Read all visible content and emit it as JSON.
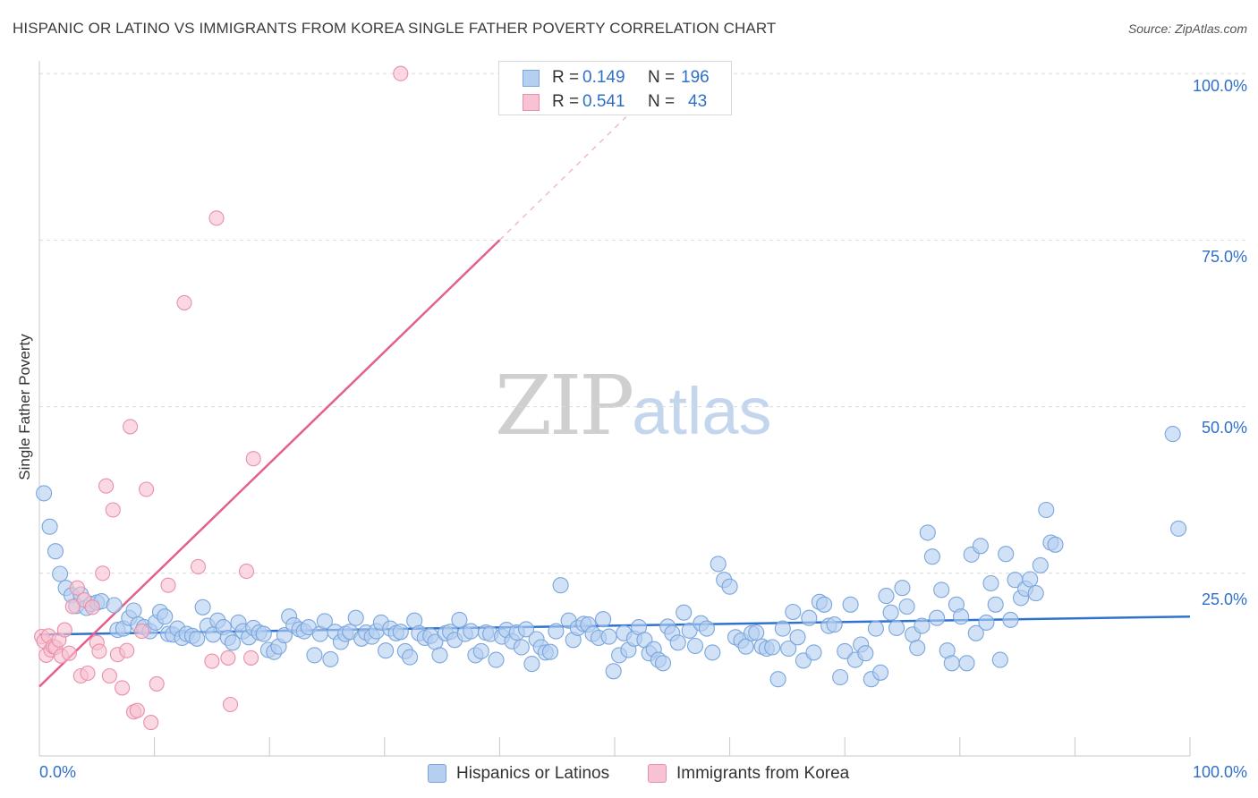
{
  "header": {
    "title": "HISPANIC OR LATINO VS IMMIGRANTS FROM KOREA SINGLE FATHER POVERTY CORRELATION CHART",
    "source": "Source: ZipAtlas.com"
  },
  "watermark": {
    "zip": "ZIP",
    "atlas": "atlas"
  },
  "legend_top": {
    "rows": [
      {
        "r_label": "R =",
        "r_value": "0.149",
        "n_label": "N =",
        "n_value": "196"
      },
      {
        "r_label": "R =",
        "r_value": "0.541",
        "n_label": "N =",
        "n_value": "43"
      }
    ]
  },
  "legend_bottom": {
    "items": [
      "Hispanics or Latinos",
      "Immigrants from Korea"
    ]
  },
  "axes": {
    "ylabel": "Single Father Poverty",
    "y_ticks": [
      "100.0%",
      "75.0%",
      "50.0%",
      "25.0%"
    ],
    "x_ticks": [
      "0.0%",
      "100.0%"
    ]
  },
  "colors": {
    "blue_fill": "#b5cff0",
    "blue_stroke": "#7aa6dd",
    "blue_line": "#2f72d0",
    "pink_fill": "#f7c2d1",
    "pink_stroke": "#ea8fab",
    "pink_line": "#e4608c",
    "tick_text": "#2f6fc9"
  },
  "chart_data": {
    "type": "scatter",
    "title": "HISPANIC OR LATINO VS IMMIGRANTS FROM KOREA SINGLE FATHER POVERTY CORRELATION CHART",
    "xlabel": "",
    "ylabel": "Single Father Poverty",
    "xlim": [
      0,
      100
    ],
    "ylim": [
      0,
      100
    ],
    "grid": true,
    "legend_placement": "bottom",
    "series": [
      {
        "name": "Hispanics or Latinos",
        "R": 0.149,
        "N": 196,
        "trend": {
          "x": [
            0,
            100
          ],
          "y": [
            15.8,
            18.5
          ]
        },
        "points": [
          [
            0.4,
            37.0
          ],
          [
            0.9,
            32.0
          ],
          [
            1.4,
            28.3
          ],
          [
            1.8,
            24.9
          ],
          [
            2.3,
            22.8
          ],
          [
            2.8,
            21.7
          ],
          [
            3.2,
            20.1
          ],
          [
            3.6,
            21.8
          ],
          [
            4.1,
            19.8
          ],
          [
            4.5,
            20.4
          ],
          [
            5.0,
            20.6
          ],
          [
            5.4,
            20.8
          ],
          [
            6.5,
            20.2
          ],
          [
            6.8,
            16.5
          ],
          [
            7.3,
            16.7
          ],
          [
            7.8,
            18.3
          ],
          [
            8.2,
            19.4
          ],
          [
            8.6,
            17.3
          ],
          [
            9.1,
            16.9
          ],
          [
            9.6,
            16.3
          ],
          [
            10.1,
            17.6
          ],
          [
            10.5,
            19.2
          ],
          [
            10.9,
            18.5
          ],
          [
            11.2,
            15.9
          ],
          [
            11.6,
            15.8
          ],
          [
            12.0,
            16.7
          ],
          [
            12.4,
            15.3
          ],
          [
            12.8,
            15.9
          ],
          [
            13.3,
            15.6
          ],
          [
            13.7,
            15.2
          ],
          [
            14.2,
            19.9
          ],
          [
            14.6,
            17.1
          ],
          [
            15.1,
            15.8
          ],
          [
            15.5,
            17.9
          ],
          [
            16.0,
            16.9
          ],
          [
            16.4,
            15.3
          ],
          [
            16.8,
            14.6
          ],
          [
            17.3,
            17.6
          ],
          [
            17.7,
            16.3
          ],
          [
            18.2,
            15.4
          ],
          [
            18.6,
            16.8
          ],
          [
            19.1,
            16.1
          ],
          [
            19.5,
            15.9
          ],
          [
            19.9,
            13.5
          ],
          [
            20.4,
            13.2
          ],
          [
            20.8,
            14.0
          ],
          [
            21.3,
            15.7
          ],
          [
            21.7,
            18.5
          ],
          [
            22.1,
            17.2
          ],
          [
            22.6,
            16.6
          ],
          [
            23.0,
            16.3
          ],
          [
            23.4,
            16.9
          ],
          [
            23.9,
            12.7
          ],
          [
            24.4,
            15.9
          ],
          [
            24.8,
            17.8
          ],
          [
            25.3,
            12.1
          ],
          [
            25.7,
            16.2
          ],
          [
            26.2,
            14.7
          ],
          [
            26.6,
            15.9
          ],
          [
            27.0,
            16.2
          ],
          [
            27.5,
            18.3
          ],
          [
            28.0,
            15.2
          ],
          [
            28.4,
            16.1
          ],
          [
            28.9,
            15.5
          ],
          [
            29.3,
            16.3
          ],
          [
            29.7,
            17.6
          ],
          [
            30.1,
            13.4
          ],
          [
            30.5,
            16.7
          ],
          [
            31.0,
            16.0
          ],
          [
            31.4,
            16.2
          ],
          [
            31.8,
            13.3
          ],
          [
            32.2,
            12.4
          ],
          [
            32.6,
            17.9
          ],
          [
            33.0,
            16.0
          ],
          [
            33.5,
            15.3
          ],
          [
            34.0,
            15.6
          ],
          [
            34.4,
            14.7
          ],
          [
            34.8,
            12.7
          ],
          [
            35.3,
            16.0
          ],
          [
            35.7,
            16.2
          ],
          [
            36.1,
            15.0
          ],
          [
            36.5,
            18.0
          ],
          [
            37.0,
            15.9
          ],
          [
            37.5,
            16.3
          ],
          [
            37.9,
            12.7
          ],
          [
            38.4,
            13.3
          ],
          [
            38.8,
            16.1
          ],
          [
            39.2,
            15.9
          ],
          [
            39.7,
            12.0
          ],
          [
            40.2,
            15.5
          ],
          [
            40.6,
            16.5
          ],
          [
            41.1,
            14.8
          ],
          [
            41.5,
            16.1
          ],
          [
            41.9,
            13.9
          ],
          [
            42.3,
            16.6
          ],
          [
            42.8,
            11.4
          ],
          [
            43.2,
            15.1
          ],
          [
            43.6,
            13.9
          ],
          [
            44.0,
            13.1
          ],
          [
            44.4,
            13.2
          ],
          [
            44.9,
            16.3
          ],
          [
            45.3,
            23.2
          ],
          [
            46.0,
            17.9
          ],
          [
            46.4,
            15.0
          ],
          [
            46.8,
            16.8
          ],
          [
            47.3,
            17.4
          ],
          [
            47.7,
            17.3
          ],
          [
            48.1,
            15.9
          ],
          [
            48.6,
            15.3
          ],
          [
            49.0,
            18.1
          ],
          [
            49.5,
            15.5
          ],
          [
            49.9,
            10.3
          ],
          [
            50.4,
            12.7
          ],
          [
            50.8,
            16.0
          ],
          [
            51.2,
            13.5
          ],
          [
            51.7,
            15.2
          ],
          [
            52.1,
            16.9
          ],
          [
            52.6,
            15.0
          ],
          [
            53.0,
            13.0
          ],
          [
            53.4,
            13.6
          ],
          [
            53.8,
            12.0
          ],
          [
            54.2,
            11.5
          ],
          [
            54.6,
            17.0
          ],
          [
            55.0,
            16.0
          ],
          [
            55.5,
            14.6
          ],
          [
            56.0,
            19.1
          ],
          [
            56.5,
            16.4
          ],
          [
            57.0,
            14.1
          ],
          [
            57.5,
            17.5
          ],
          [
            58.0,
            16.7
          ],
          [
            58.5,
            13.1
          ],
          [
            59.0,
            26.4
          ],
          [
            59.5,
            24.0
          ],
          [
            60.0,
            23.0
          ],
          [
            60.5,
            15.4
          ],
          [
            61.0,
            14.9
          ],
          [
            61.4,
            14.0
          ],
          [
            61.9,
            16.0
          ],
          [
            62.3,
            16.1
          ],
          [
            62.8,
            14.0
          ],
          [
            63.2,
            13.7
          ],
          [
            63.7,
            13.9
          ],
          [
            64.2,
            9.1
          ],
          [
            64.6,
            16.7
          ],
          [
            65.1,
            13.7
          ],
          [
            65.5,
            19.2
          ],
          [
            65.9,
            15.4
          ],
          [
            66.4,
            11.9
          ],
          [
            66.9,
            18.3
          ],
          [
            67.3,
            13.1
          ],
          [
            67.8,
            20.7
          ],
          [
            68.2,
            20.3
          ],
          [
            68.6,
            17.1
          ],
          [
            69.1,
            17.3
          ],
          [
            69.6,
            9.4
          ],
          [
            70.0,
            13.3
          ],
          [
            70.5,
            20.3
          ],
          [
            70.9,
            12.0
          ],
          [
            71.4,
            14.3
          ],
          [
            71.8,
            13.0
          ],
          [
            72.3,
            9.1
          ],
          [
            72.7,
            16.7
          ],
          [
            73.1,
            10.1
          ],
          [
            73.6,
            21.6
          ],
          [
            74.0,
            19.1
          ],
          [
            74.5,
            16.8
          ],
          [
            75.0,
            22.8
          ],
          [
            75.4,
            20.0
          ],
          [
            75.9,
            15.8
          ],
          [
            76.3,
            13.8
          ],
          [
            76.7,
            17.1
          ],
          [
            77.2,
            31.1
          ],
          [
            77.6,
            27.5
          ],
          [
            78.0,
            18.3
          ],
          [
            78.4,
            22.5
          ],
          [
            78.9,
            13.4
          ],
          [
            79.3,
            11.5
          ],
          [
            79.7,
            20.3
          ],
          [
            80.1,
            18.5
          ],
          [
            80.6,
            11.5
          ],
          [
            81.0,
            27.8
          ],
          [
            81.4,
            16.0
          ],
          [
            81.8,
            29.1
          ],
          [
            82.3,
            17.6
          ],
          [
            82.7,
            23.5
          ],
          [
            83.1,
            20.3
          ],
          [
            83.5,
            12.0
          ],
          [
            84.0,
            27.9
          ],
          [
            84.4,
            18.0
          ],
          [
            84.8,
            24.0
          ],
          [
            85.3,
            21.3
          ],
          [
            85.7,
            22.7
          ],
          [
            86.1,
            24.1
          ],
          [
            86.6,
            22.0
          ],
          [
            87.0,
            26.2
          ],
          [
            87.5,
            34.5
          ],
          [
            87.9,
            29.6
          ],
          [
            88.3,
            29.3
          ],
          [
            98.5,
            45.9
          ],
          [
            99.0,
            31.7
          ]
        ]
      },
      {
        "name": "Immigrants from Korea",
        "R": 0.541,
        "N": 43,
        "trend": {
          "x": [
            0,
            40
          ],
          "y": [
            8.0,
            75.0
          ],
          "dashed_to": {
            "x": 51,
            "y": 93.5
          }
        },
        "points": [
          [
            0.2,
            15.5
          ],
          [
            0.4,
            14.8
          ],
          [
            0.6,
            12.7
          ],
          [
            0.8,
            15.6
          ],
          [
            1.0,
            13.5
          ],
          [
            1.2,
            14.0
          ],
          [
            1.4,
            13.9
          ],
          [
            1.7,
            15.0
          ],
          [
            1.9,
            12.6
          ],
          [
            2.2,
            16.5
          ],
          [
            2.6,
            13.0
          ],
          [
            2.9,
            20.0
          ],
          [
            3.3,
            22.8
          ],
          [
            3.6,
            9.6
          ],
          [
            3.9,
            21.0
          ],
          [
            4.2,
            10.0
          ],
          [
            4.6,
            19.9
          ],
          [
            5.0,
            14.6
          ],
          [
            5.2,
            13.3
          ],
          [
            5.5,
            25.0
          ],
          [
            5.8,
            38.1
          ],
          [
            6.1,
            9.6
          ],
          [
            6.4,
            34.5
          ],
          [
            6.8,
            12.8
          ],
          [
            7.2,
            7.8
          ],
          [
            7.6,
            13.4
          ],
          [
            7.9,
            47.0
          ],
          [
            8.2,
            4.2
          ],
          [
            8.5,
            4.4
          ],
          [
            8.9,
            16.3
          ],
          [
            9.3,
            37.6
          ],
          [
            9.7,
            2.6
          ],
          [
            10.2,
            8.4
          ],
          [
            11.2,
            23.2
          ],
          [
            12.6,
            65.6
          ],
          [
            13.8,
            26.0
          ],
          [
            15.0,
            11.8
          ],
          [
            15.4,
            78.3
          ],
          [
            16.4,
            12.3
          ],
          [
            16.6,
            5.3
          ],
          [
            18.0,
            25.3
          ],
          [
            18.4,
            12.3
          ],
          [
            18.6,
            42.2
          ],
          [
            31.4,
            100.0
          ]
        ]
      }
    ]
  }
}
